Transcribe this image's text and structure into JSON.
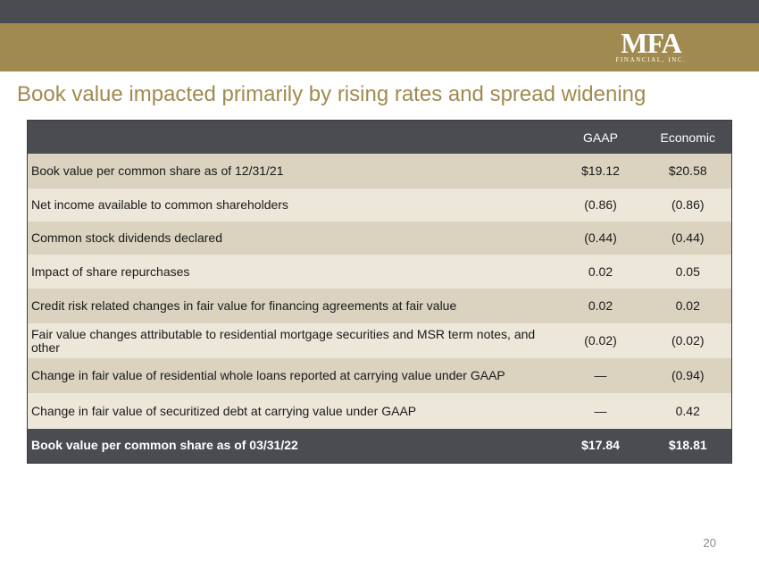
{
  "header": {
    "logo_text": "MFA",
    "logo_subtext": "FINANCIAL, INC."
  },
  "slide": {
    "title": "Book value impacted primarily by rising rates and spread widening",
    "page_number": "20"
  },
  "table": {
    "columns": [
      "",
      "GAAP",
      "Economic"
    ],
    "rows": [
      {
        "label": "Book value per common share as of 12/31/21",
        "gaap": "$19.12",
        "economic": "$20.58"
      },
      {
        "label": "Net income available to common shareholders",
        "gaap": "(0.86)",
        "economic": "(0.86)"
      },
      {
        "label": "Common stock dividends declared",
        "gaap": "(0.44)",
        "economic": "(0.44)"
      },
      {
        "label": "Impact of share repurchases",
        "gaap": "0.02",
        "economic": "0.05"
      },
      {
        "label": "Credit risk related changes in fair value for financing agreements at fair value",
        "gaap": "0.02",
        "economic": "0.02"
      },
      {
        "label": "Fair value changes attributable to residential mortgage securities and MSR term notes, and other",
        "gaap": "(0.02)",
        "economic": "(0.02)"
      },
      {
        "label": "Change in fair value of residential whole loans reported at carrying value under GAAP",
        "gaap": "—",
        "economic": "(0.94)"
      },
      {
        "label": "Change in fair value of securitized debt at carrying value under GAAP",
        "gaap": "—",
        "economic": "0.42"
      }
    ],
    "total": {
      "label": "Book value per common share as of 03/31/22",
      "gaap": "$17.84",
      "economic": "$18.81"
    }
  }
}
